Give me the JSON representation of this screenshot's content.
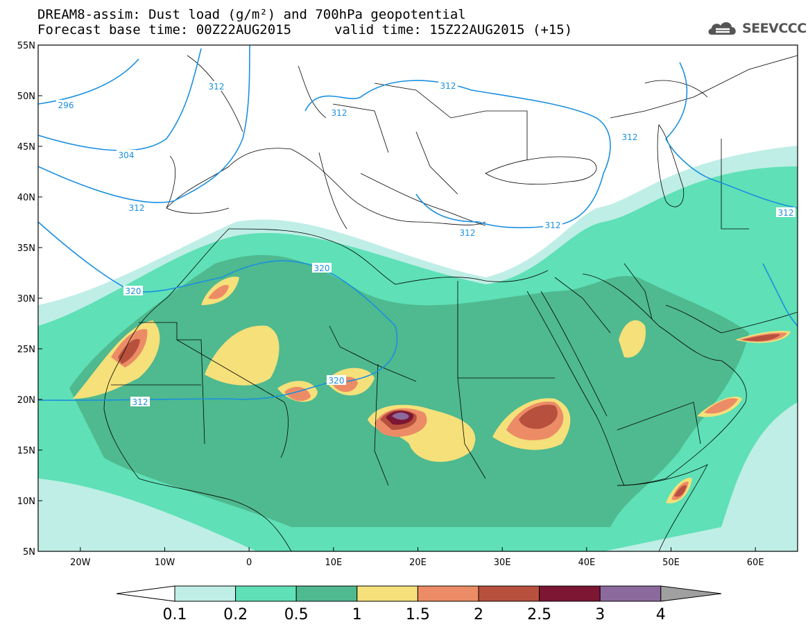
{
  "header": {
    "title_line1": "DREAM8-assim: Dust load (g/m²) and 700hPa geopotential",
    "title_line2": "Forecast base time: 00Z22AUG2015",
    "valid_time": "valid time: 15Z22AUG2015 (+15)",
    "logo_text": "SEEVCCC",
    "logo_icon": "cloud-icon"
  },
  "map": {
    "lat_labels": [
      "55N",
      "50N",
      "45N",
      "40N",
      "35N",
      "30N",
      "25N",
      "20N",
      "15N",
      "10N",
      "5N"
    ],
    "lat_values": [
      55,
      50,
      45,
      40,
      35,
      30,
      25,
      20,
      15,
      10,
      5
    ],
    "lon_labels": [
      "20W",
      "10W",
      "0",
      "10E",
      "20E",
      "30E",
      "40E",
      "50E",
      "60E"
    ],
    "lon_values": [
      -20,
      -10,
      0,
      10,
      20,
      30,
      40,
      50,
      60
    ],
    "extent": {
      "lon_min": -25,
      "lon_max": 65,
      "lat_min": 5,
      "lat_max": 55
    },
    "contour_labels": [
      "296",
      "304",
      "312",
      "312",
      "312",
      "312",
      "312",
      "312",
      "312",
      "320",
      "320",
      "320",
      "312",
      "312"
    ],
    "contour_color": "#1a8fe0"
  },
  "colorbar": {
    "labels": [
      "0.1",
      "0.2",
      "0.5",
      "1",
      "1.5",
      "2",
      "2.5",
      "3",
      "4"
    ],
    "colors": [
      "#bfeee6",
      "#5fe0b6",
      "#4fb98f",
      "#f5e07a",
      "#ec8c66",
      "#b8503e",
      "#7c1633",
      "#8c6a9e"
    ],
    "under_color": "#ffffff",
    "over_color": "#a0a0a0"
  }
}
